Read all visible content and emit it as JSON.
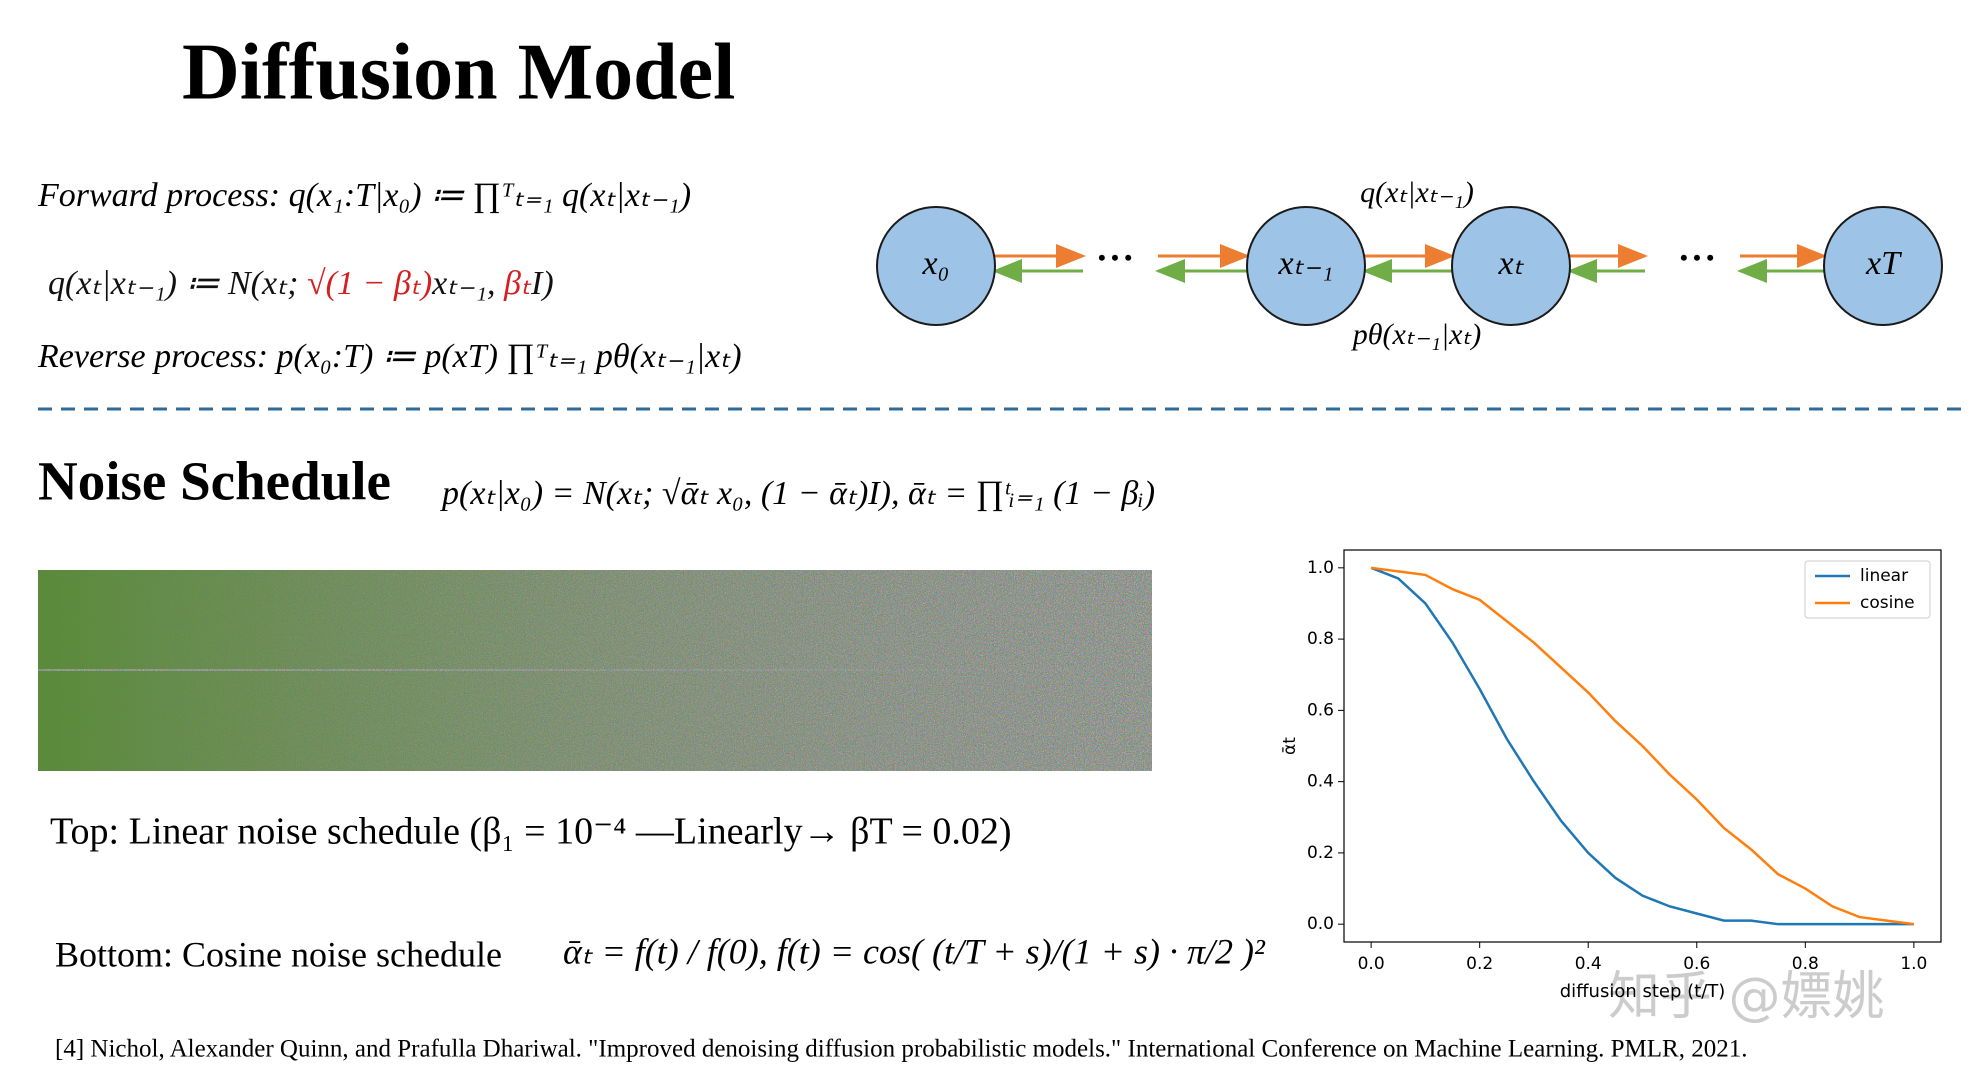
{
  "title": "Diffusion Model",
  "forward": "Forward process: q(x₁:T|x₀) ≔ ∏ᵀₜ₌₁ q(xₜ|xₜ₋₁)",
  "q_parts": [
    {
      "text": "q(xₜ|xₜ₋₁) ≔ N(xₜ; ",
      "color": "#111111"
    },
    {
      "text": "√(1 − βₜ)",
      "color": "#d42020"
    },
    {
      "text": "xₜ₋₁, ",
      "color": "#111111"
    },
    {
      "text": "βₜ",
      "color": "#d42020"
    },
    {
      "text": "I)",
      "color": "#111111"
    }
  ],
  "reverse": "Reverse process: p(x₀:T) ≔ p(xT) ∏ᵀₜ₌₁ pθ(xₜ₋₁|xₜ)",
  "diagram": {
    "nodes": [
      "x₀",
      "xₜ₋₁",
      "xₜ",
      "xT"
    ],
    "ellipsis": "• • •",
    "forward_label": "q(xₜ|xₜ₋₁)",
    "reverse_label": "pθ(xₜ₋₁|xₜ)"
  },
  "noise_title": "Noise Schedule",
  "noise_eq": "p(xₜ|x₀) = N(xₜ; √ᾱₜ x₀, (1 − ᾱₜ)I),   ᾱₜ = ∏ᵗᵢ₌₁ (1 − βᵢ)",
  "top_caption": "Top: Linear noise schedule (β₁ = 10⁻⁴ —Linearly→ βT = 0.02)",
  "bottom_caption": "Bottom: Cosine noise schedule",
  "bottom_eq": "ᾱₜ = f(t) / f(0),   f(t) = cos( (t/T + s)/(1 + s) · π/2 )²",
  "reference": "[4] Nichol, Alexander Quinn, and Prafulla Dhariwal. \"Improved denoising diffusion probabilistic models.\" International Conference on Machine Learning. PMLR, 2021.",
  "watermark": "知乎 @嫖姚",
  "chart_data": {
    "type": "line",
    "x_label": "diffusion step (t/T)",
    "y_label": "ᾱt",
    "x": [
      0,
      0.05,
      0.1,
      0.15,
      0.2,
      0.25,
      0.3,
      0.35,
      0.4,
      0.45,
      0.5,
      0.55,
      0.6,
      0.65,
      0.7,
      0.75,
      0.8,
      0.85,
      0.9,
      0.95,
      1
    ],
    "series": [
      {
        "name": "linear",
        "color": "#1f77b4",
        "values": [
          1,
          0.97,
          0.9,
          0.79,
          0.66,
          0.52,
          0.4,
          0.29,
          0.2,
          0.13,
          0.08,
          0.05,
          0.03,
          0.01,
          0.01,
          0,
          0,
          0,
          0,
          0,
          0
        ]
      },
      {
        "name": "cosine",
        "color": "#ff7f0e",
        "values": [
          1,
          0.99,
          0.98,
          0.94,
          0.91,
          0.85,
          0.79,
          0.72,
          0.65,
          0.57,
          0.5,
          0.42,
          0.35,
          0.27,
          0.21,
          0.14,
          0.1,
          0.05,
          0.02,
          0.01,
          0
        ]
      }
    ],
    "xlim": [
      -0.05,
      1.05
    ],
    "ylim": [
      -0.05,
      1.05
    ],
    "xticks": [
      {
        "value": 0,
        "label": "0.0"
      },
      0.2,
      0.4,
      0.6,
      0.8,
      {
        "value": 1,
        "label": "1.0"
      }
    ],
    "yticks": [
      {
        "value": 0,
        "label": "0.0"
      },
      0.2,
      0.4,
      0.6,
      0.8,
      {
        "value": 1,
        "label": "1.0"
      }
    ],
    "legend": "upper right"
  }
}
